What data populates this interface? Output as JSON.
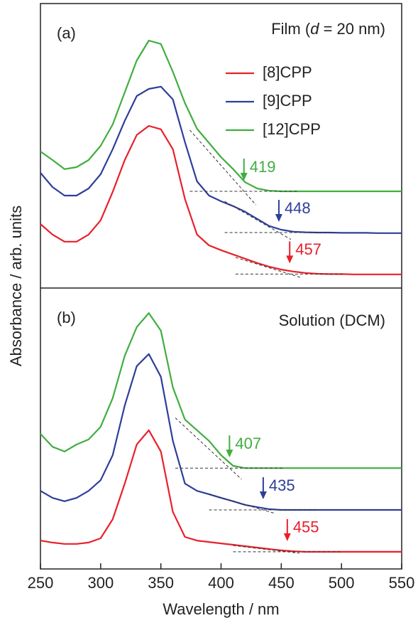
{
  "chart_data": [
    {
      "type": "line",
      "panel_label": "(a)",
      "title_parts": [
        "Film (",
        "d",
        " = 20 nm)"
      ],
      "ylabel": "Absorbance / arb. units",
      "xlim": [
        250,
        550
      ],
      "ylim": [
        0,
        10
      ],
      "x": [
        250,
        260,
        270,
        280,
        290,
        300,
        310,
        320,
        330,
        340,
        350,
        360,
        370,
        380,
        390,
        400,
        410,
        420,
        430,
        440,
        450,
        460,
        470,
        480,
        490,
        500,
        510,
        520,
        530,
        540,
        550
      ],
      "series": [
        {
          "name": "[8]CPP",
          "color": "#e8202a",
          "onset": 457,
          "values": [
            2.25,
            1.88,
            1.63,
            1.63,
            1.88,
            2.38,
            3.38,
            4.5,
            5.38,
            5.7,
            5.58,
            4.88,
            3.13,
            1.88,
            1.5,
            1.33,
            1.18,
            1.03,
            0.88,
            0.75,
            0.65,
            0.58,
            0.53,
            0.5,
            0.49,
            0.49,
            0.48,
            0.48,
            0.48,
            0.48,
            0.48
          ]
        },
        {
          "name": "[9]CPP",
          "color": "#2e3e9a",
          "onset": 448,
          "values": [
            4.05,
            3.55,
            3.25,
            3.25,
            3.5,
            4.0,
            4.88,
            5.88,
            6.75,
            7.0,
            7.08,
            6.63,
            5.13,
            3.75,
            3.25,
            3.05,
            2.88,
            2.68,
            2.43,
            2.18,
            2.05,
            1.98,
            1.96,
            1.95,
            1.95,
            1.94,
            1.94,
            1.94,
            1.93,
            1.93,
            1.93
          ]
        },
        {
          "name": "[12]CPP",
          "color": "#3fae3f",
          "onset": 419,
          "values": [
            4.8,
            4.5,
            4.18,
            4.25,
            4.5,
            5.0,
            5.75,
            6.88,
            8.0,
            8.7,
            8.58,
            7.6,
            6.5,
            5.6,
            5.1,
            4.6,
            4.18,
            3.72,
            3.5,
            3.42,
            3.4,
            3.4,
            3.4,
            3.4,
            3.4,
            3.4,
            3.4,
            3.4,
            3.4,
            3.4,
            3.4
          ]
        }
      ]
    },
    {
      "type": "line",
      "panel_label": "(b)",
      "title": "Solution (DCM)",
      "xlabel": "Wavelength / nm",
      "xlim": [
        250,
        550
      ],
      "ylim": [
        0,
        10
      ],
      "xticks": [
        250,
        300,
        350,
        400,
        450,
        500,
        550
      ],
      "x": [
        250,
        260,
        270,
        280,
        290,
        300,
        310,
        320,
        330,
        340,
        350,
        360,
        370,
        380,
        390,
        400,
        410,
        420,
        430,
        440,
        450,
        460,
        470,
        480,
        490,
        500,
        510,
        520,
        530,
        540,
        550
      ],
      "series": [
        {
          "color": "#e8202a",
          "onset": 455,
          "values": [
            1.01,
            0.94,
            0.89,
            0.89,
            0.94,
            1.09,
            1.77,
            3.04,
            4.43,
            4.94,
            4.18,
            2.03,
            1.14,
            1.01,
            0.96,
            0.91,
            0.86,
            0.81,
            0.76,
            0.71,
            0.66,
            0.63,
            0.61,
            0.61,
            0.61,
            0.61,
            0.61,
            0.61,
            0.61,
            0.61,
            0.61
          ]
        },
        {
          "color": "#2e3e9a",
          "onset": 435,
          "values": [
            2.78,
            2.53,
            2.41,
            2.53,
            2.78,
            3.16,
            4.05,
            5.82,
            7.22,
            7.65,
            6.84,
            4.56,
            3.04,
            2.78,
            2.66,
            2.53,
            2.41,
            2.28,
            2.2,
            2.13,
            2.1,
            2.1,
            2.1,
            2.1,
            2.1,
            2.1,
            2.1,
            2.1,
            2.1,
            2.1,
            2.1
          ]
        },
        {
          "color": "#3fae3f",
          "onset": 407,
          "values": [
            4.81,
            4.35,
            4.18,
            4.43,
            4.61,
            5.06,
            6.08,
            7.59,
            8.61,
            9.11,
            8.48,
            6.46,
            5.32,
            4.94,
            4.56,
            4.05,
            3.67,
            3.59,
            3.59,
            3.59,
            3.59,
            3.59,
            3.59,
            3.59,
            3.59,
            3.59,
            3.59,
            3.59,
            3.59,
            3.59,
            3.59
          ]
        }
      ]
    }
  ]
}
